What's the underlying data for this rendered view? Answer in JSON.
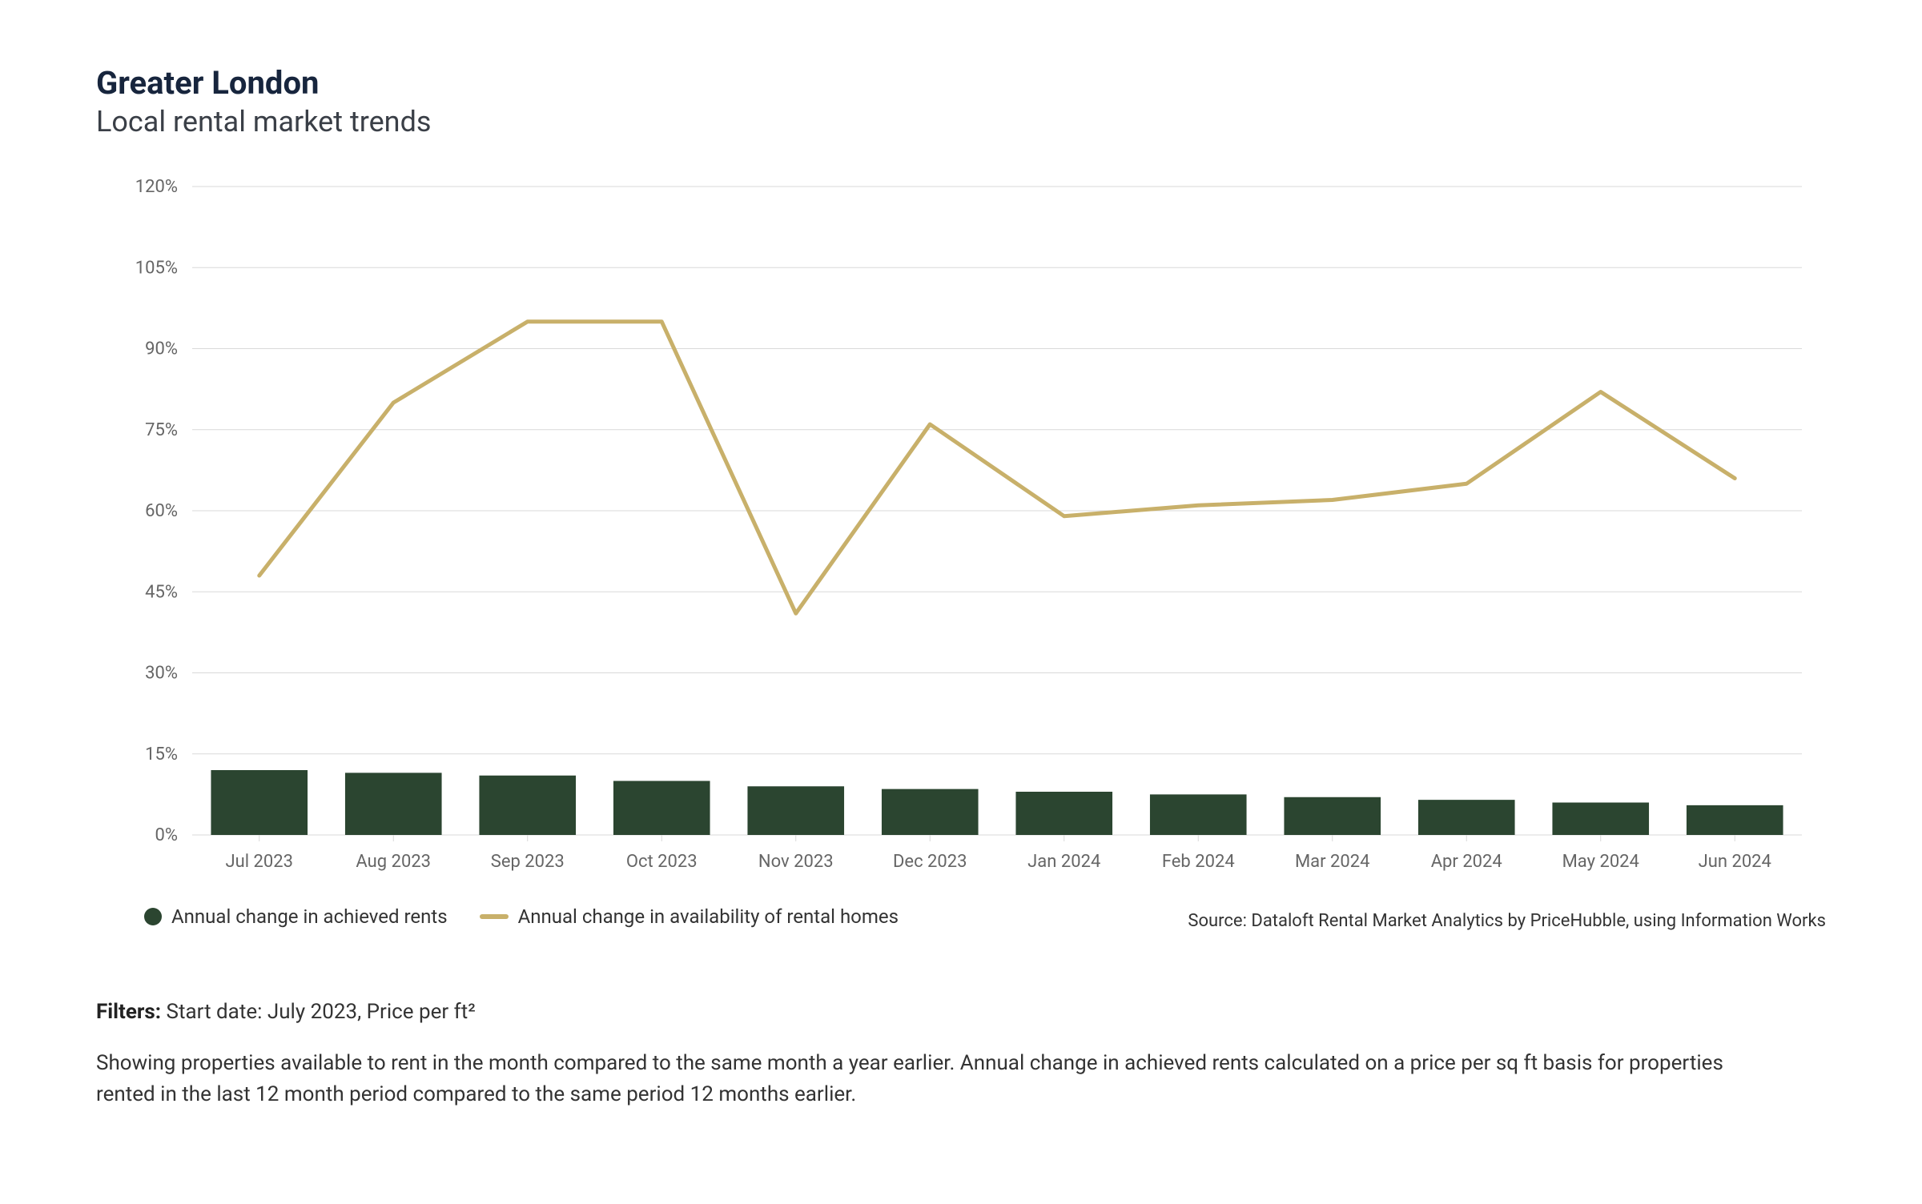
{
  "header": {
    "title": "Greater London",
    "subtitle": "Local rental market trends"
  },
  "chart": {
    "type": "bar+line",
    "background_color": "#ffffff",
    "grid_color": "#d9d9d9",
    "axis_label_color": "#666666",
    "axis_label_fontsize": 22,
    "ylim": [
      0,
      120
    ],
    "ytick_step": 15,
    "ytick_suffix": "%",
    "categories": [
      "Jul 2023",
      "Aug 2023",
      "Sep 2023",
      "Oct 2023",
      "Nov 2023",
      "Dec 2023",
      "Jan 2024",
      "Feb 2024",
      "Mar 2024",
      "Apr 2024",
      "May 2024",
      "Jun 2024"
    ],
    "bars": {
      "label": "Annual change in achieved rents",
      "color": "#2b4530",
      "width": 0.72,
      "values": [
        12,
        11.5,
        11,
        10,
        9,
        8.5,
        8,
        7.5,
        7,
        6.5,
        6,
        5.5
      ]
    },
    "line": {
      "label": "Annual change in availability of rental homes",
      "color": "#c8b06a",
      "stroke_width": 5,
      "values": [
        48,
        80,
        95,
        95,
        41,
        76,
        59,
        61,
        62,
        65,
        82,
        66
      ]
    }
  },
  "source": "Source: Dataloft Rental Market Analytics by PriceHubble, using Information Works",
  "filters": {
    "label": "Filters:",
    "text": "Start date: July 2023, Price per ft²"
  },
  "description": "Showing properties available to rent in the month compared to the same month a year earlier. Annual change in achieved rents calculated on a price per sq ft basis for properties rented in the last 12 month period compared to the same period 12 months earlier."
}
